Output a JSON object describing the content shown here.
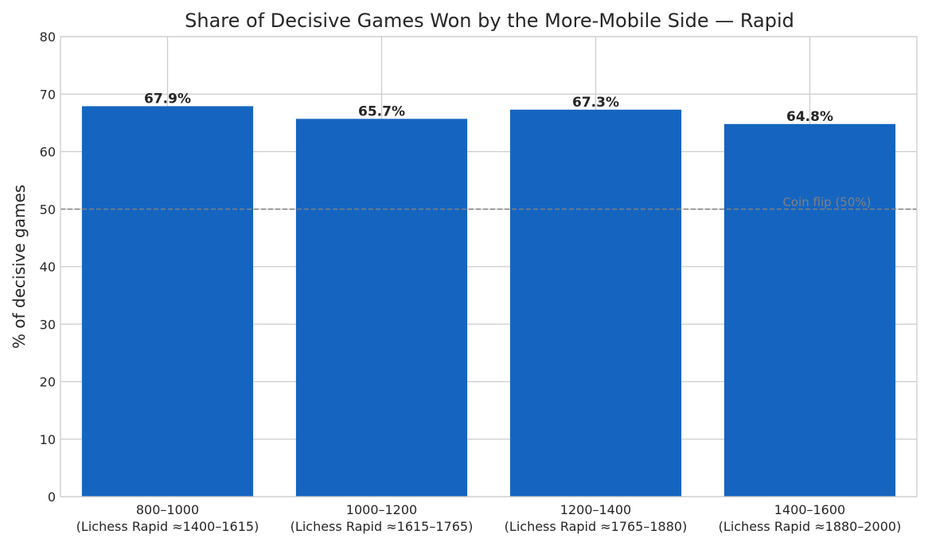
{
  "chart_data": {
    "type": "bar",
    "title": "Share of Decisive Games Won by the More-Mobile Side — Rapid",
    "xlabel": "",
    "ylabel": "% of decisive games",
    "categories": [
      "800–1000\n(Lichess Rapid ≈1400–1615)",
      "1000–1200\n(Lichess Rapid ≈1615–1765)",
      "1200–1400\n(Lichess Rapid ≈1765–1880)",
      "1400–1600\n(Lichess Rapid ≈1880–2000)"
    ],
    "category_lines": [
      [
        "800–1000",
        "(Lichess Rapid ≈1400–1615)"
      ],
      [
        "1000–1200",
        "(Lichess Rapid ≈1615–1765)"
      ],
      [
        "1200–1400",
        "(Lichess Rapid ≈1765–1880)"
      ],
      [
        "1400–1600",
        "(Lichess Rapid ≈1880–2000)"
      ]
    ],
    "values": [
      67.9,
      65.7,
      67.3,
      64.8
    ],
    "data_labels": [
      "67.9%",
      "65.7%",
      "67.3%",
      "64.8%"
    ],
    "ylim": [
      0,
      80
    ],
    "yticks": [
      0,
      10,
      20,
      30,
      40,
      50,
      60,
      70,
      80
    ],
    "grid": true,
    "bar_color": "#1565c0",
    "reference_line": {
      "value": 50,
      "label": "Coin flip (50%)",
      "color": "#808080",
      "style": "dashed"
    }
  }
}
